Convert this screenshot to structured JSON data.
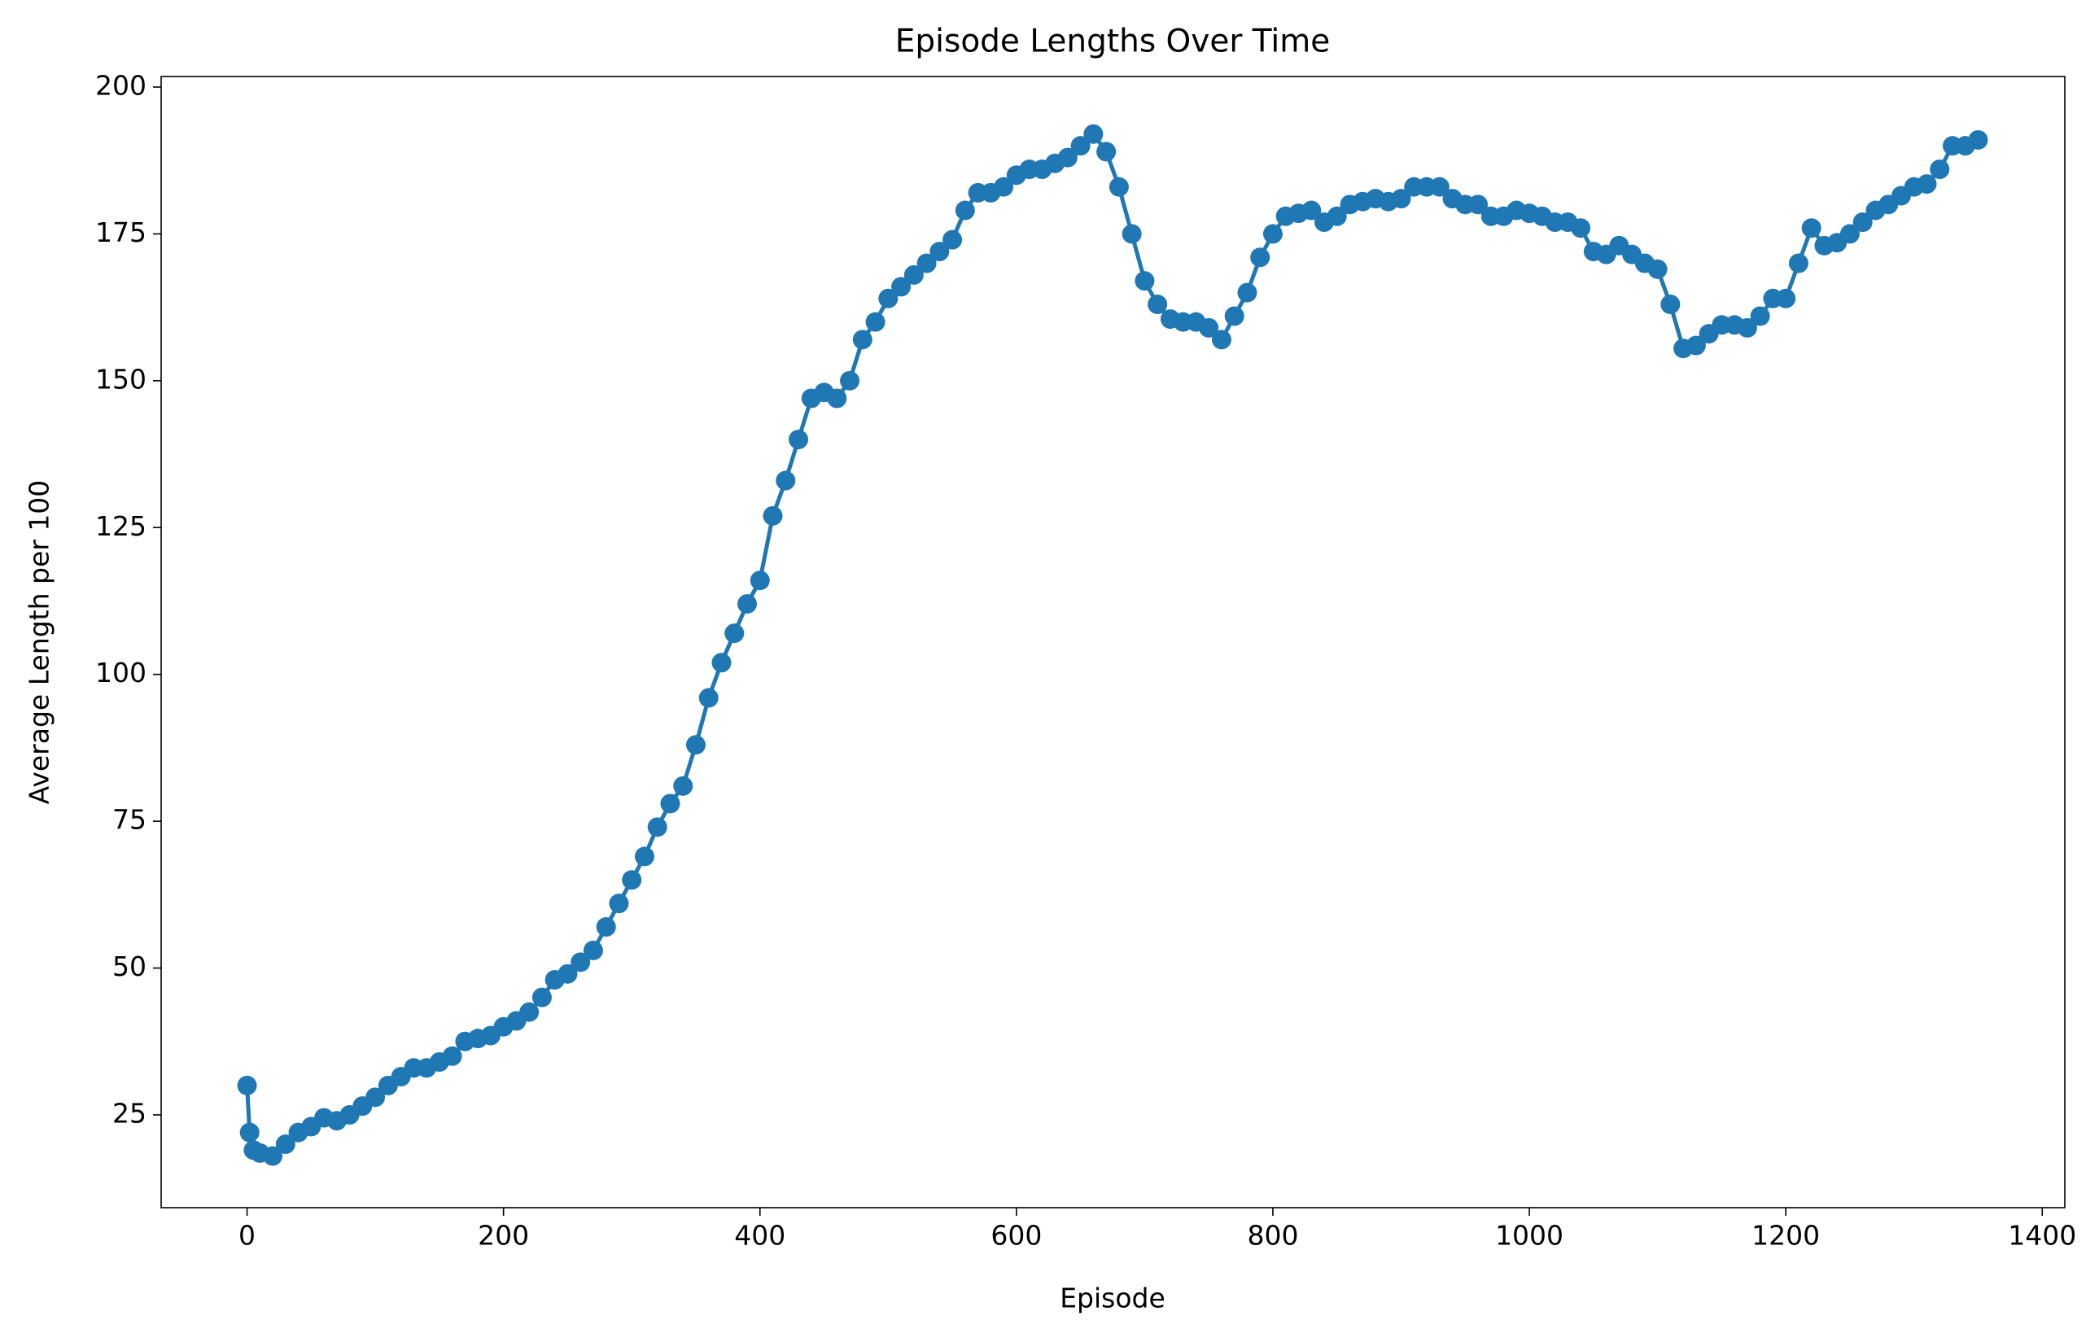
{
  "chart_data": {
    "type": "line",
    "title": "Episode Lengths Over Time",
    "x_label": "Episode",
    "y_label": "Average Length per 100",
    "color": "#1f77b4",
    "marker": true,
    "x": [
      0,
      2,
      5,
      10,
      20,
      30,
      40,
      50,
      60,
      70,
      80,
      90,
      100,
      110,
      120,
      130,
      140,
      150,
      160,
      170,
      180,
      190,
      200,
      210,
      220,
      230,
      240,
      250,
      260,
      270,
      280,
      290,
      300,
      310,
      320,
      330,
      340,
      350,
      360,
      370,
      380,
      390,
      400,
      410,
      420,
      430,
      440,
      450,
      460,
      470,
      480,
      490,
      500,
      510,
      520,
      530,
      540,
      550,
      560,
      570,
      580,
      590,
      600,
      610,
      620,
      630,
      640,
      650,
      660,
      670,
      680,
      690,
      700,
      710,
      720,
      730,
      740,
      750,
      760,
      770,
      780,
      790,
      800,
      810,
      820,
      830,
      840,
      850,
      860,
      870,
      880,
      890,
      900,
      910,
      920,
      930,
      940,
      950,
      960,
      970,
      980,
      990,
      1000,
      1010,
      1020,
      1030,
      1040,
      1050,
      1060,
      1070,
      1080,
      1090,
      1100,
      1110,
      1120,
      1130,
      1140,
      1150,
      1160,
      1170,
      1180,
      1190,
      1200,
      1210,
      1220,
      1230,
      1240,
      1250,
      1260,
      1270,
      1280,
      1290,
      1300,
      1310,
      1320,
      1330,
      1340,
      1350
    ],
    "values": [
      30,
      22,
      19,
      18.5,
      18,
      20,
      22,
      23,
      24.5,
      24,
      25,
      26.5,
      28,
      30,
      31.5,
      33,
      33,
      34,
      35,
      37.5,
      38,
      38.5,
      40,
      41,
      42.5,
      45,
      48,
      49,
      51,
      53,
      57,
      61,
      65,
      69,
      74,
      78,
      81,
      88,
      96,
      102,
      107,
      112,
      116,
      127,
      133,
      140,
      147,
      148,
      147,
      150,
      157,
      160,
      164,
      166,
      168,
      170,
      172,
      174,
      179,
      182,
      182,
      183,
      185,
      186,
      186,
      187,
      188,
      190,
      192,
      189,
      183,
      175,
      167,
      163,
      160.5,
      160,
      160,
      159,
      157,
      161,
      165,
      171,
      175,
      178,
      178.5,
      179,
      177,
      178,
      180,
      180.5,
      181,
      180.5,
      181,
      183,
      183,
      183,
      181,
      180,
      180,
      178,
      178,
      179,
      178.5,
      178,
      177,
      177,
      176,
      172,
      171.5,
      173,
      171.5,
      170,
      169,
      163,
      155.5,
      156,
      158,
      159.5,
      159.5,
      159,
      161,
      164,
      164,
      170,
      176,
      173,
      173.5,
      175,
      177,
      179,
      180,
      181.5,
      183,
      183.5,
      186,
      190,
      190,
      191
    ],
    "xlim": [
      -67,
      1417.6
    ],
    "ylim": [
      9.2,
      201.8
    ],
    "xticks": [
      0,
      200,
      400,
      600,
      800,
      1000,
      1200,
      1400
    ],
    "yticks": [
      25,
      50,
      75,
      100,
      125,
      150,
      175,
      200
    ]
  }
}
